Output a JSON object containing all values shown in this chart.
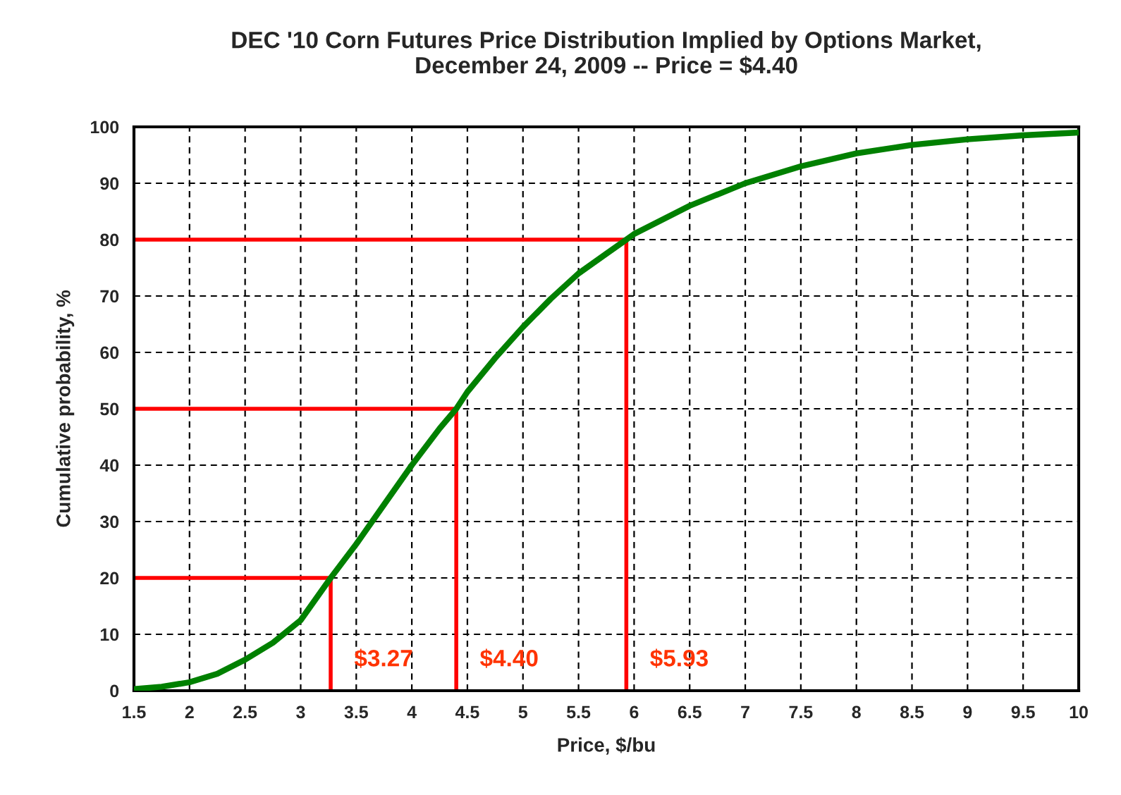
{
  "chart_data": {
    "type": "line",
    "title": "DEC '10 Corn Futures Price Distribution Implied by Options Market,\nDecember 24, 2009 -- Price = $4.40",
    "xlabel": "Price, $/bu",
    "ylabel": "Cumulative probability, %",
    "series": [
      {
        "color": "#008000",
        "x": [
          1.5,
          1.75,
          2,
          2.25,
          2.5,
          2.75,
          3,
          3.27,
          3.5,
          3.75,
          4,
          4.25,
          4.4,
          4.5,
          4.75,
          5,
          5.25,
          5.5,
          5.75,
          5.93,
          6,
          6.5,
          7,
          7.5,
          8,
          8.5,
          9,
          9.5,
          10
        ],
        "values": [
          0.3,
          0.7,
          1.5,
          3,
          5.5,
          8.5,
          12.5,
          20,
          26,
          33,
          40,
          46.5,
          50,
          53,
          59,
          64.5,
          69.5,
          74,
          77.5,
          80,
          81,
          86,
          90,
          93,
          95.3,
          96.8,
          97.8,
          98.5,
          99
        ]
      },
      {
        "color": "#ff0000",
        "x": [
          1.5,
          3.27,
          3.27
        ],
        "values": [
          20,
          20,
          0
        ]
      },
      {
        "color": "#ff0000",
        "x": [
          1.5,
          4.4,
          4.4
        ],
        "values": [
          50,
          50,
          0
        ]
      },
      {
        "color": "#ff0000",
        "x": [
          1.5,
          5.93,
          5.93
        ],
        "values": [
          80,
          80,
          0
        ]
      }
    ],
    "annotations": [
      {
        "text": "$3.27",
        "x": 3.27,
        "y": 0
      },
      {
        "text": "$4.40",
        "x": 4.4,
        "y": 0
      },
      {
        "text": "$5.93",
        "x": 5.93,
        "y": 0
      }
    ],
    "xlim": [
      1.5,
      10
    ],
    "xticks": [
      1.5,
      2,
      2.5,
      3,
      3.5,
      4,
      4.5,
      5,
      5.5,
      6,
      6.5,
      7,
      7.5,
      8,
      8.5,
      9,
      9.5,
      10
    ],
    "ylim": [
      0,
      100
    ],
    "yticks": [
      0,
      10,
      20,
      30,
      40,
      50,
      60,
      70,
      80,
      90,
      100
    ],
    "grid": true,
    "legend": false,
    "marker": "none",
    "line_style": "solid"
  }
}
